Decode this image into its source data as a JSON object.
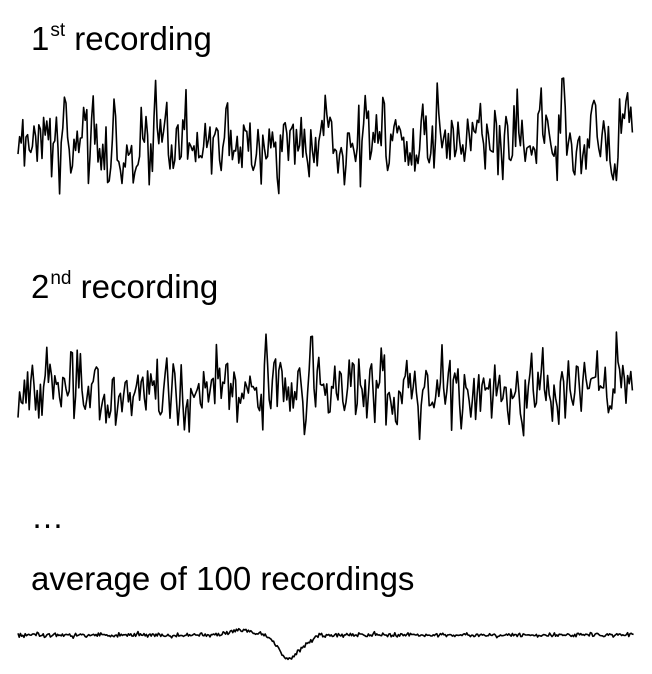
{
  "labels": {
    "first": {
      "number": "1",
      "suffix": "st",
      "text": " recording"
    },
    "second": {
      "number": "2",
      "suffix": "nd",
      "text": " recording"
    },
    "ellipsis": "…",
    "average": "average of 100 recordings"
  },
  "traces": [
    {
      "name": "1st recording",
      "amplitude": "high",
      "seed": 17
    },
    {
      "name": "2nd recording",
      "amplitude": "high",
      "seed": 53
    },
    {
      "name": "average of 100 recordings",
      "amplitude": "low",
      "evoked_response": true,
      "seed": 91
    }
  ],
  "colors": {
    "background": "#ffffff",
    "trace": "#000000",
    "text": "#000000"
  }
}
